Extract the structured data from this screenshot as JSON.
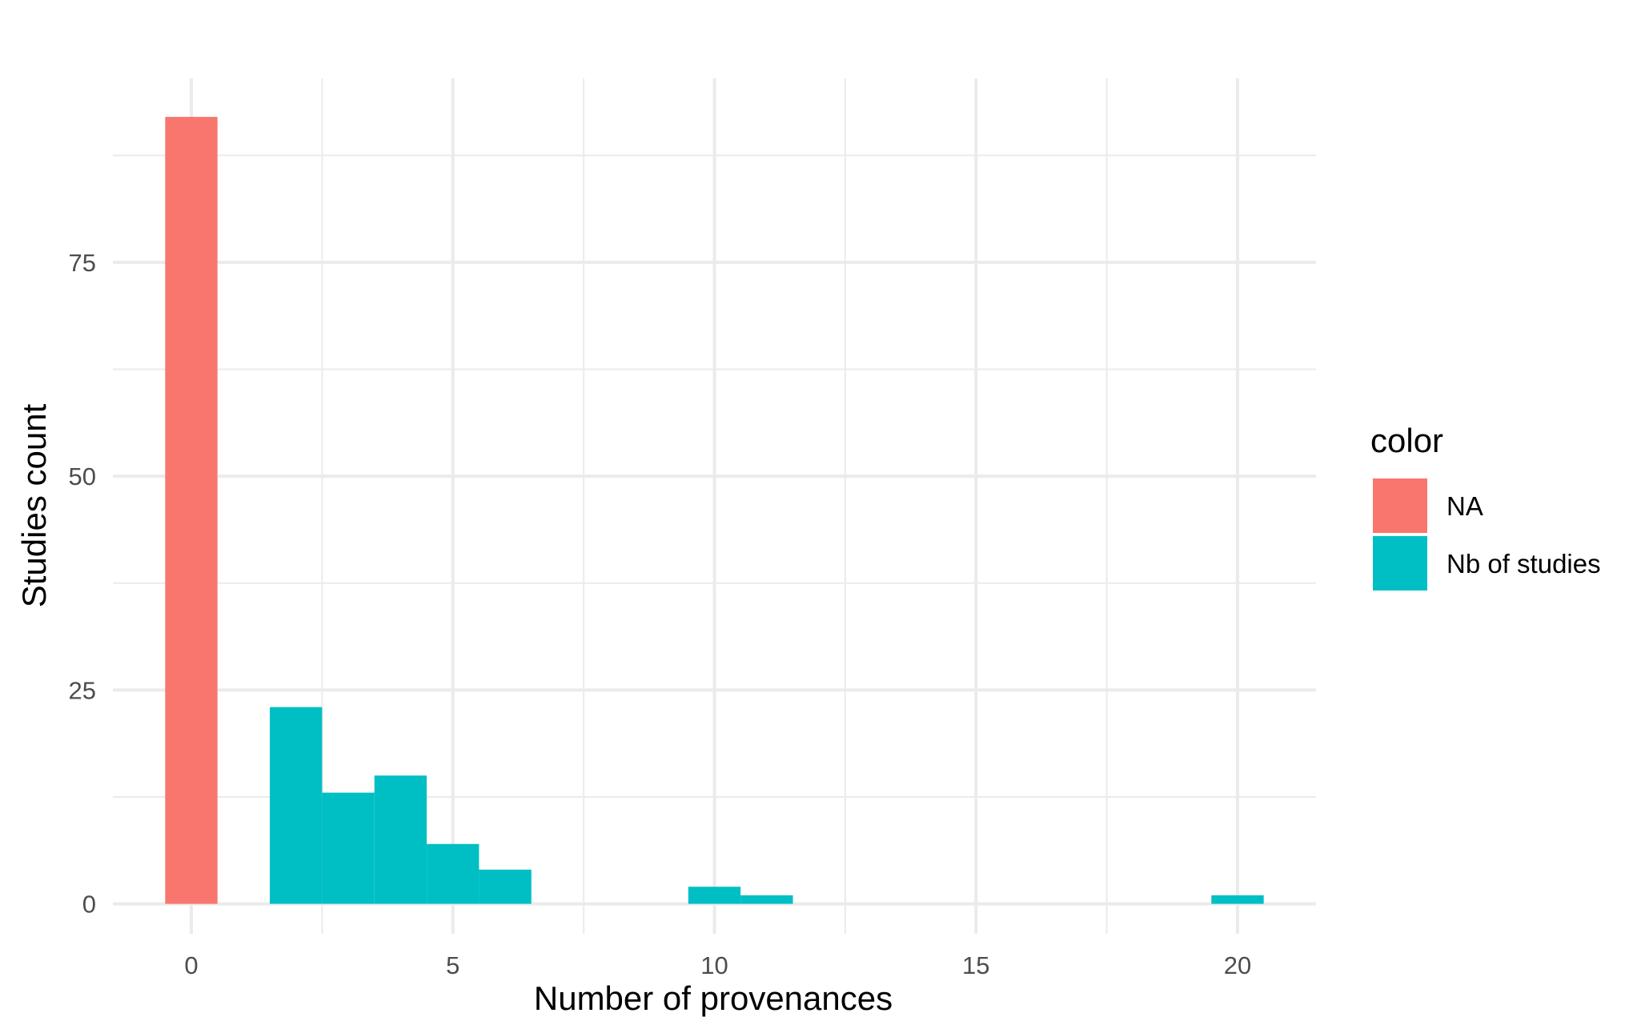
{
  "chart_data": {
    "type": "bar",
    "xlabel": "Number of provenances",
    "ylabel": "Studies count",
    "xlim": [
      -1.5,
      21.5
    ],
    "ylim": [
      -3.5,
      96.5
    ],
    "x_ticks": [
      0,
      5,
      10,
      15,
      20
    ],
    "y_ticks": [
      0,
      25,
      50,
      75
    ],
    "grid": true,
    "legend": {
      "title": "color",
      "position": "right",
      "entries": [
        {
          "label": "NA",
          "color": "#F8766D"
        },
        {
          "label": "Nb of studies",
          "color": "#00BFC4"
        }
      ]
    },
    "series": [
      {
        "name": "NA",
        "color": "#F8766D",
        "points": [
          {
            "x": 0,
            "y": 92
          }
        ]
      },
      {
        "name": "Nb of studies",
        "color": "#00BFC4",
        "points": [
          {
            "x": 2,
            "y": 23
          },
          {
            "x": 3,
            "y": 13
          },
          {
            "x": 4,
            "y": 15
          },
          {
            "x": 5,
            "y": 7
          },
          {
            "x": 6,
            "y": 4
          },
          {
            "x": 10,
            "y": 2
          },
          {
            "x": 11,
            "y": 1
          },
          {
            "x": 20,
            "y": 1
          }
        ]
      }
    ]
  }
}
